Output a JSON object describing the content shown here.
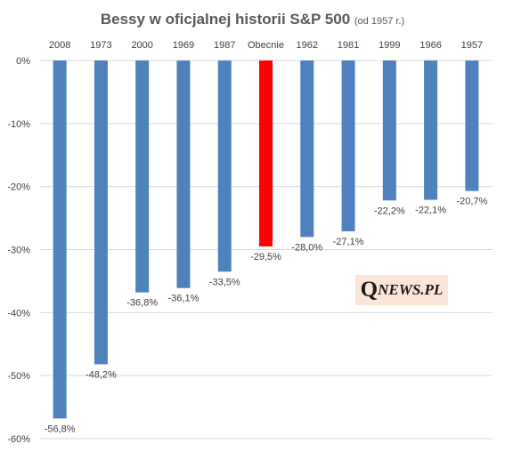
{
  "chart_data": {
    "type": "bar",
    "title": "Bessy w oficjalnej historii S&P 500",
    "subtitle": "(od 1957 r.)",
    "categories": [
      "2008",
      "1973",
      "2000",
      "1969",
      "1987",
      "Obecnie",
      "1962",
      "1981",
      "1999",
      "1966",
      "1957"
    ],
    "values": [
      -56.8,
      -48.2,
      -36.8,
      -36.1,
      -33.5,
      -29.5,
      -28.0,
      -27.1,
      -22.2,
      -22.1,
      -20.7
    ],
    "data_labels": [
      "-56,8%",
      "-48,2%",
      "-36,8%",
      "-36,1%",
      "-33,5%",
      "-29,5%",
      "-28,0%",
      "-27,1%",
      "-22,2%",
      "-22,1%",
      "-20,7%"
    ],
    "y_ticks": [
      0,
      -10,
      -20,
      -30,
      -40,
      -50,
      -60
    ],
    "y_tick_labels": [
      "0%",
      "-10%",
      "-20%",
      "-30%",
      "-40%",
      "-50%",
      "-60%"
    ],
    "ylim": [
      -60,
      0
    ],
    "grid": true,
    "x_axis_position": "top",
    "colors": {
      "default_bar": "#4f81bd",
      "highlight_bar": "#ff0000",
      "highlight_category": "Obecnie",
      "gridline": "#d9d9d9"
    }
  },
  "watermark": {
    "q": "Q",
    "news": "NEWS",
    "pl": ".PL"
  }
}
